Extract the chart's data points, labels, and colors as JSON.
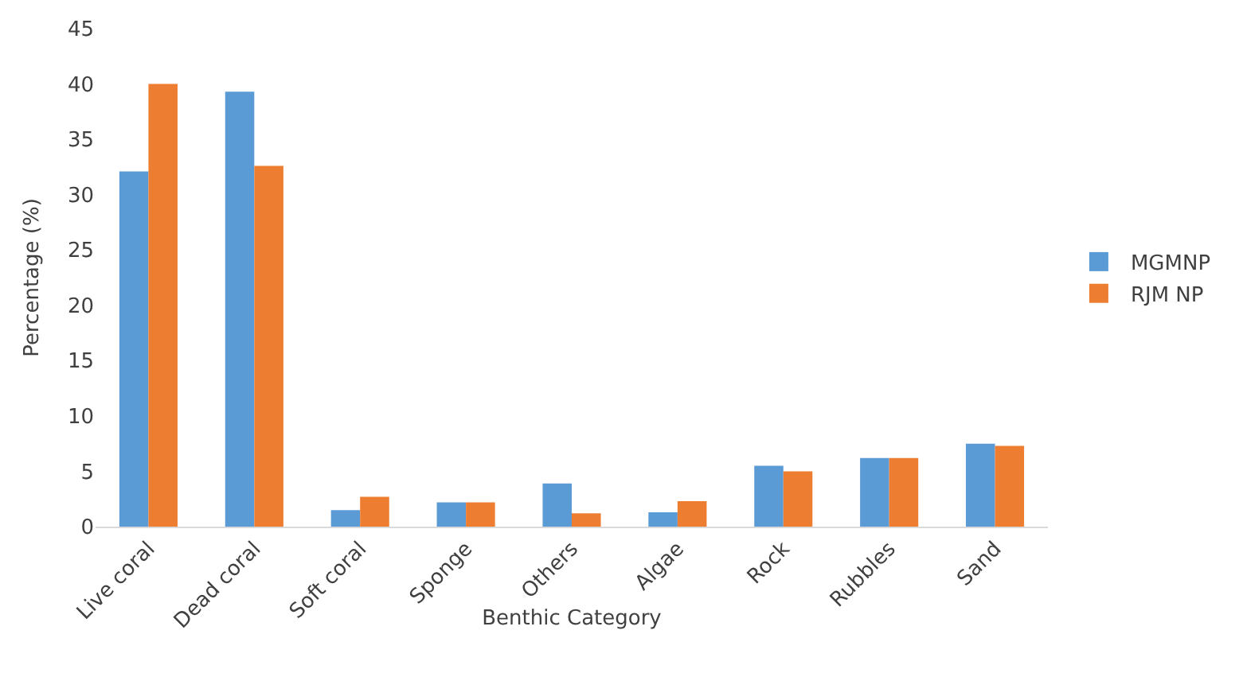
{
  "chart_data": {
    "type": "bar",
    "xlabel": "Benthic Category",
    "ylabel": "Percentage (%)",
    "categories": [
      "Live coral",
      "Dead coral",
      "Soft coral",
      "Sponge",
      "Others",
      "Algae",
      "Rock",
      "Rubbles",
      "Sand"
    ],
    "series": [
      {
        "name": "MGMNP",
        "color": "#5b9bd5",
        "values": [
          32.1,
          39.3,
          1.5,
          2.2,
          3.9,
          1.3,
          5.5,
          6.2,
          7.5
        ]
      },
      {
        "name": "RJM NP",
        "color": "#ed7d31",
        "values": [
          40.0,
          32.6,
          2.7,
          2.2,
          1.2,
          2.3,
          5.0,
          6.2,
          7.3
        ]
      }
    ],
    "ylim": [
      0,
      45
    ],
    "yticks": [
      0,
      5,
      10,
      15,
      20,
      25,
      30,
      35,
      40,
      45
    ],
    "grid": false,
    "legend": "right"
  }
}
